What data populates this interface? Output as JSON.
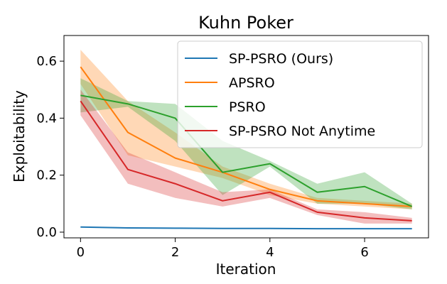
{
  "chart_data": {
    "type": "line",
    "title": "Kuhn Poker",
    "xlabel": "Iteration",
    "ylabel": "Exploitability",
    "xlim": [
      -0.35,
      7.35
    ],
    "ylim": [
      -0.02,
      0.69
    ],
    "xticks": [
      0,
      2,
      4,
      6
    ],
    "xtick_labels": [
      "0",
      "2",
      "4",
      "6"
    ],
    "yticks": [
      0.0,
      0.2,
      0.4,
      0.6
    ],
    "ytick_labels": [
      "0.0",
      "0.2",
      "0.4",
      "0.6"
    ],
    "grid": false,
    "legend_position": "top-right",
    "x": [
      0,
      1,
      2,
      3,
      4,
      5,
      6,
      7
    ],
    "series": [
      {
        "name": "SP-PSRO (Ours)",
        "color": "#1f77b4",
        "values": [
          0.018,
          0.015,
          0.014,
          0.013,
          0.013,
          0.012,
          0.012,
          0.012
        ],
        "lower": [
          0.016,
          0.013,
          0.012,
          0.011,
          0.011,
          0.01,
          0.01,
          0.01
        ],
        "upper": [
          0.02,
          0.017,
          0.016,
          0.015,
          0.015,
          0.014,
          0.014,
          0.014
        ]
      },
      {
        "name": "APSRO",
        "color": "#ff7f0e",
        "values": [
          0.58,
          0.35,
          0.26,
          0.21,
          0.15,
          0.11,
          0.1,
          0.09
        ],
        "lower": [
          0.52,
          0.27,
          0.23,
          0.19,
          0.13,
          0.1,
          0.09,
          0.08
        ],
        "upper": [
          0.64,
          0.46,
          0.35,
          0.23,
          0.17,
          0.12,
          0.11,
          0.1
        ]
      },
      {
        "name": "PSRO",
        "color": "#2ca02c",
        "values": [
          0.48,
          0.45,
          0.4,
          0.21,
          0.24,
          0.14,
          0.16,
          0.09
        ],
        "lower": [
          0.42,
          0.44,
          0.32,
          0.13,
          0.23,
          0.1,
          0.1,
          0.08
        ],
        "upper": [
          0.54,
          0.46,
          0.45,
          0.32,
          0.25,
          0.17,
          0.21,
          0.1
        ]
      },
      {
        "name": "SP-PSRO Not Anytime",
        "color": "#d62728",
        "values": [
          0.46,
          0.22,
          0.17,
          0.11,
          0.14,
          0.07,
          0.05,
          0.04
        ],
        "lower": [
          0.41,
          0.17,
          0.12,
          0.09,
          0.12,
          0.06,
          0.03,
          0.03
        ],
        "upper": [
          0.5,
          0.28,
          0.21,
          0.14,
          0.15,
          0.08,
          0.07,
          0.05
        ]
      }
    ]
  }
}
